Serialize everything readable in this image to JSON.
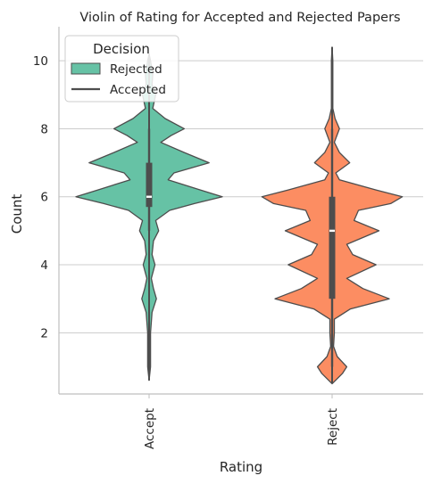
{
  "chart_data": {
    "type": "violin",
    "title": "Violin of Rating for Accepted and Rejected Papers",
    "xlabel": "Rating",
    "ylabel": "Count",
    "categories": [
      "Accept",
      "Reject"
    ],
    "ylim": [
      0.2,
      11.0
    ],
    "yticks": [
      2,
      4,
      6,
      8,
      10
    ],
    "grid": "horizontal",
    "legend": {
      "title": "Decision",
      "placement": "top-left",
      "entries": [
        {
          "label": "Rejected",
          "kind": "patch"
        },
        {
          "label": "Accepted",
          "kind": "line"
        }
      ]
    },
    "colors": {
      "Accept": "#66c2a5",
      "Reject": "#fc8d62",
      "outline": "#4d4d4d",
      "grid": "#cccccc",
      "axis": "#bfbfbf"
    },
    "violins": [
      {
        "category": "Accept",
        "range": [
          0.6,
          10.2
        ],
        "box": {
          "q1": 5.7,
          "median": 6.0,
          "q3": 7.0,
          "whisker_low": 5.0,
          "whisker_high": 8.0
        },
        "density": [
          [
            0.6,
            0.0
          ],
          [
            1.0,
            0.02
          ],
          [
            2.0,
            0.02
          ],
          [
            2.6,
            0.04
          ],
          [
            3.0,
            0.1
          ],
          [
            3.3,
            0.06
          ],
          [
            3.6,
            0.03
          ],
          [
            4.0,
            0.08
          ],
          [
            4.3,
            0.04
          ],
          [
            4.7,
            0.06
          ],
          [
            5.0,
            0.13
          ],
          [
            5.3,
            0.09
          ],
          [
            5.6,
            0.28
          ],
          [
            5.8,
            0.62
          ],
          [
            6.0,
            1.0
          ],
          [
            6.2,
            0.7
          ],
          [
            6.5,
            0.26
          ],
          [
            6.7,
            0.34
          ],
          [
            7.0,
            0.82
          ],
          [
            7.3,
            0.48
          ],
          [
            7.6,
            0.16
          ],
          [
            7.8,
            0.3
          ],
          [
            8.0,
            0.48
          ],
          [
            8.3,
            0.22
          ],
          [
            8.6,
            0.05
          ],
          [
            9.0,
            0.09
          ],
          [
            9.3,
            0.04
          ],
          [
            9.6,
            0.05
          ],
          [
            10.0,
            0.02
          ],
          [
            10.2,
            0.0
          ]
        ]
      },
      {
        "category": "Reject",
        "range": [
          0.5,
          10.4
        ],
        "box": {
          "q1": 3.0,
          "median": 5.0,
          "q3": 6.0,
          "whisker_low": 1.0,
          "whisker_high": 8.0
        },
        "density": [
          [
            0.5,
            0.0
          ],
          [
            0.8,
            0.14
          ],
          [
            1.0,
            0.2
          ],
          [
            1.3,
            0.07
          ],
          [
            1.6,
            0.02
          ],
          [
            2.0,
            0.03
          ],
          [
            2.4,
            0.03
          ],
          [
            2.7,
            0.25
          ],
          [
            3.0,
            0.78
          ],
          [
            3.3,
            0.42
          ],
          [
            3.6,
            0.2
          ],
          [
            4.0,
            0.6
          ],
          [
            4.3,
            0.28
          ],
          [
            4.6,
            0.2
          ],
          [
            5.0,
            0.64
          ],
          [
            5.3,
            0.3
          ],
          [
            5.6,
            0.36
          ],
          [
            5.8,
            0.8
          ],
          [
            6.0,
            0.96
          ],
          [
            6.2,
            0.6
          ],
          [
            6.5,
            0.1
          ],
          [
            6.7,
            0.05
          ],
          [
            7.0,
            0.24
          ],
          [
            7.3,
            0.1
          ],
          [
            7.6,
            0.03
          ],
          [
            8.0,
            0.1
          ],
          [
            8.3,
            0.04
          ],
          [
            8.6,
            0.01
          ],
          [
            9.0,
            0.01
          ],
          [
            10.0,
            0.01
          ],
          [
            10.4,
            0.0
          ]
        ]
      }
    ]
  }
}
